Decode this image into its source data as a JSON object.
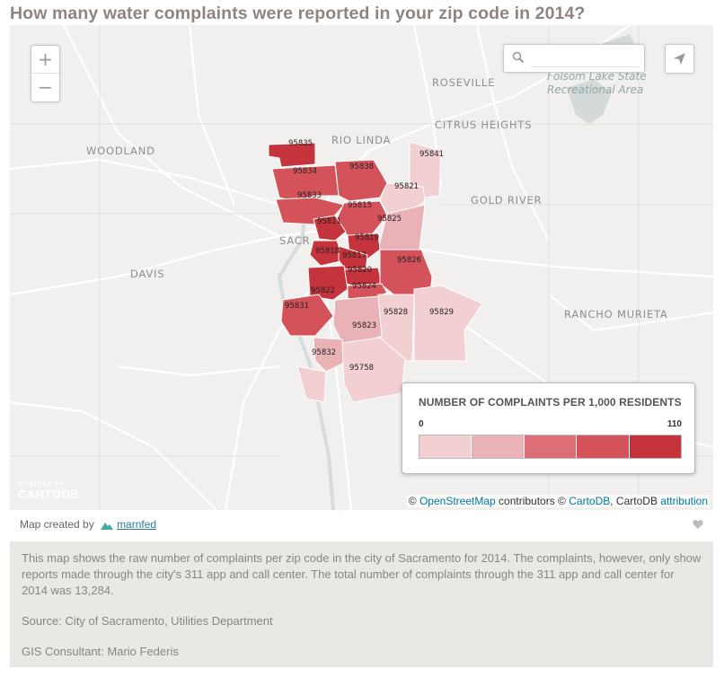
{
  "title": "How many water complaints were reported in your zip code in 2014?",
  "map": {
    "zoom_in": "+",
    "zoom_out": "−",
    "search_placeholder": "",
    "place_labels": {
      "roseville": "ROSEVILLE",
      "folsom1": "Folsom Lake State",
      "folsom2": "Recreational Area",
      "rio_linda": "RIO LINDA",
      "citrus": "CITRUS HEIGHTS",
      "woodland": "WOODLAND",
      "gold_river": "GOLD RIVER",
      "sacr": "SACR",
      "davis": "DAVIS",
      "rancho": "RANCHO MURIETA"
    },
    "zip_codes": [
      "95835",
      "95834",
      "95838",
      "95841",
      "95833",
      "95821",
      "95815",
      "95811",
      "95825",
      "95819",
      "95818",
      "95817",
      "95820",
      "95826",
      "95822",
      "95824",
      "95831",
      "95828",
      "95829",
      "95823",
      "95832",
      "95758"
    ],
    "attribution": {
      "copy1": "©",
      "osm": "OpenStreetMap",
      "contributors": "contributors ©",
      "cartodb": "CartoDB",
      "comma": ", CartoDB",
      "attrib": "attribution"
    },
    "logo_small": "POWERED BY",
    "logo_big": "CARTODB"
  },
  "legend": {
    "title": "NUMBER OF COMPLAINTS PER 1,000 RESIDENTS",
    "min": "0",
    "max": "110",
    "colors": [
      "#f2cfd1",
      "#e9b2b6",
      "#dd6e76",
      "#d4525a",
      "#c5343d"
    ]
  },
  "footer": {
    "created_by": "Map created by",
    "author": "marnfed"
  },
  "description": {
    "p1": "This map shows the raw number of complaints per zip code in the city of Sacramento for 2014. The complaints, however, only show reports made through the city's 311 app and call center. The total number of complaints through the 311 app and call center for 2014 was 13,284.",
    "source": "Source: City of Sacramento, Utilities Department",
    "consultant": "GIS Consultant: Mario Federis"
  }
}
